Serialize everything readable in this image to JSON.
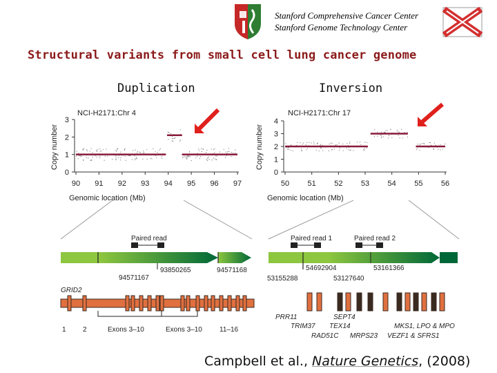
{
  "header": {
    "line1": "Stanford Comprehensive Cancer Center",
    "line2": "Stanford Genome Technology Center"
  },
  "title": "Structural variants from small cell lung cancer genome",
  "columns": [
    "Duplication",
    "Inversion"
  ],
  "citation": {
    "authors": "Campbell et al., ",
    "journal": "Nature Genetics",
    "year": ", (2008)"
  },
  "colors": {
    "title": "#8b1a1a",
    "segment": "#8a1a3a",
    "arrow": "#e0201c",
    "exon": "#e07040",
    "exon_dark": "#3a2a20",
    "gene_bar_start": "#8dc63f",
    "gene_bar_end": "#006838"
  },
  "chart_data": [
    {
      "type": "scatter",
      "title": "NCI-H2171:Chr 4",
      "xlabel": "Genomic location (Mb)",
      "ylabel": "Copy number",
      "xlim": [
        90,
        97
      ],
      "ylim": [
        0,
        3
      ],
      "x_ticks": [
        "90",
        "91",
        "92",
        "93",
        "94",
        "95",
        "96",
        "97"
      ],
      "y_ticks": [
        "0",
        "1",
        "2",
        "3"
      ],
      "segments": [
        {
          "x": [
            90.0,
            93.9
          ],
          "y": 1.0
        },
        {
          "x": [
            93.95,
            94.6
          ],
          "y": 2.1
        },
        {
          "x": [
            94.6,
            97.0
          ],
          "y": 1.0
        }
      ]
    },
    {
      "type": "scatter",
      "title": "NCI-H2171:Chr 17",
      "xlabel": "Genomic location (Mb)",
      "ylabel": "Copy number",
      "xlim": [
        50,
        56
      ],
      "ylim": [
        0,
        4
      ],
      "x_ticks": [
        "50",
        "51",
        "52",
        "53",
        "54",
        "55",
        "56"
      ],
      "y_ticks": [
        "0",
        "1",
        "2",
        "3",
        "4"
      ],
      "segments": [
        {
          "x": [
            50.0,
            53.1
          ],
          "y": 2.0
        },
        {
          "x": [
            53.2,
            54.6
          ],
          "y": 3.0
        },
        {
          "x": [
            54.9,
            56.0
          ],
          "y": 2.0
        }
      ]
    }
  ],
  "left_diagram": {
    "paired_read": "Paired read",
    "coords": [
      "93850265",
      "94571168",
      "94571167"
    ],
    "gene": "GRID2",
    "exon_labels": [
      "1",
      "2",
      "Exons 3–10",
      "Exons 3–10",
      "11–16"
    ]
  },
  "right_diagram": {
    "paired_read_1": "Paired read 1",
    "paired_read_2": "Paired read 2",
    "coords": [
      "54692904",
      "53161366",
      "53155288",
      "53127640"
    ],
    "genes": [
      "PRR11",
      "SEPT4",
      "TRIM37",
      "TEX14",
      "MKS1, LPO & MPO",
      "RAD51C",
      "MRPS23",
      "VEZF1 & SFRS1"
    ]
  }
}
